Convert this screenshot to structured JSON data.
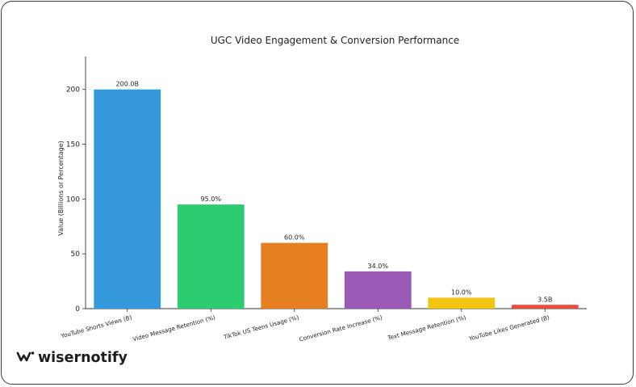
{
  "chart_data": {
    "type": "bar",
    "title": "UGC Video Engagement & Conversion Performance",
    "xlabel": "",
    "ylabel": "Value (Billions or Percentage)",
    "ylim": [
      0,
      230
    ],
    "yticks": [
      0,
      50,
      100,
      150,
      200
    ],
    "grid": false,
    "categories": [
      "YouTube Shorts Views (B)",
      "Video Message Retention (%)",
      "TikTok US Teens Usage (%)",
      "Conversion Rate Increase (%)",
      "Text Message Retention (%)",
      "YouTube Likes Generated (B)"
    ],
    "values": [
      200.0,
      95.0,
      60.0,
      34.0,
      10.0,
      3.5
    ],
    "data_labels": [
      "200.0B",
      "95.0%",
      "60.0%",
      "34.0%",
      "10.0%",
      "3.5B"
    ],
    "colors": [
      "#3498db",
      "#2ecc71",
      "#e67e22",
      "#9b59b6",
      "#f1c40f",
      "#e74c3c"
    ]
  },
  "brand": {
    "name": "wisernotify",
    "logo_icon": "wisernotify-logo-icon"
  }
}
